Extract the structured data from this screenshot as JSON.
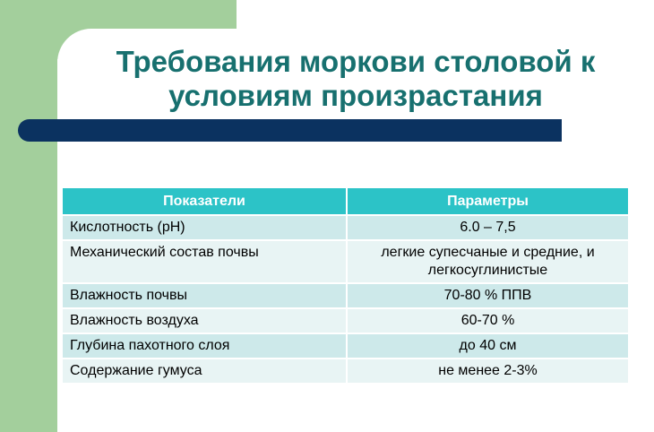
{
  "slide": {
    "title_line1": "Требования моркови столовой к",
    "title_line2": "условиям произрастания"
  },
  "table": {
    "headers": [
      "Показатели",
      "Параметры"
    ],
    "rows": [
      {
        "param": "Кислотность (рН)",
        "value": "6.0 – 7,5"
      },
      {
        "param": "Механический состав почвы",
        "value_line1": "легкие супесчаные и средние, и",
        "value_line2": "легкосуглинистые"
      },
      {
        "param": "Влажность почвы",
        "value": "70-80 % ППВ"
      },
      {
        "param": "Влажность воздуха",
        "value": "60-70 %"
      },
      {
        "param": "Глубина пахотного слоя",
        "value": "до 40 см"
      },
      {
        "param": "Содержание гумуса",
        "value": "не менее 2-3%"
      }
    ]
  },
  "colors": {
    "title": "#17706f",
    "accent_green": "#a3cf9c",
    "navy_bar": "#0b3260",
    "header_bg": "#2cc3c7"
  }
}
